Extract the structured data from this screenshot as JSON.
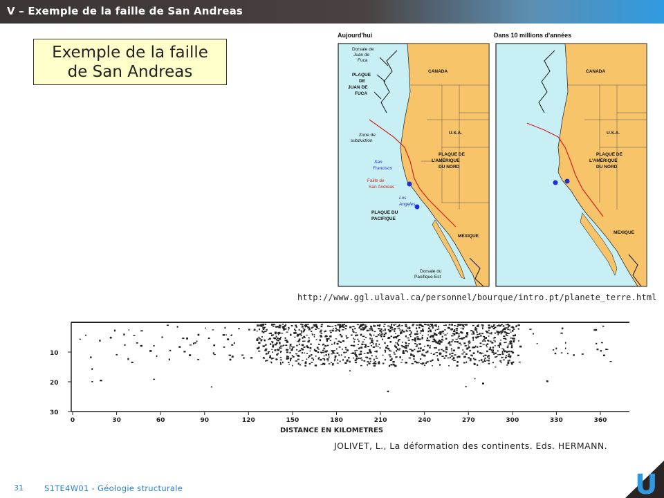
{
  "header": {
    "title": "V – Exemple de la faille de San Andreas"
  },
  "slide_box": {
    "line1": "Exemple de la faille",
    "line2": "de San Andreas"
  },
  "maps": {
    "left_title": "Aujourd'hui",
    "right_title": "Dans 10 millions d'années",
    "labels": {
      "dorsale_jdf": [
        "Dorsale de",
        "Juan de",
        "Fuca"
      ],
      "plaque_jdf": [
        "PLAQUE",
        "DE",
        "JUAN DE",
        "FUCA"
      ],
      "zone_subduction": [
        "Zone de",
        "subduction"
      ],
      "canada": "CANADA",
      "usa": "U.S.A.",
      "plaque_amerique": [
        "PLAQUE DE",
        "L'AMÉRIQUE",
        "DU NORD"
      ],
      "san_francisco": [
        "San",
        "Francisco"
      ],
      "faille": [
        "Faille de",
        "San Andreas"
      ],
      "los_angeles": [
        "Los",
        "Angeles"
      ],
      "plaque_pacifique": [
        "PLAQUE DU",
        "PACIFIQUE"
      ],
      "mexique": "MEXIQUE",
      "dorsale_pe": [
        "Dorsale du",
        "Pacifique-Est"
      ]
    },
    "colors": {
      "ocean": "#c8f0f4",
      "land": "#f7c46a",
      "fault": "#d42020",
      "city": "#1a2fd0"
    }
  },
  "source_url": "http://www.ggl.ulaval.ca/personnel/bourque/intro.pt/planete_terre.html",
  "seismo": {
    "y_ticks": [
      "10",
      "20",
      "30"
    ],
    "x_ticks": [
      "0",
      "30",
      "60",
      "90",
      "120",
      "150",
      "180",
      "210",
      "240",
      "270",
      "300",
      "330",
      "360"
    ],
    "x_label": "DISTANCE EN KILOMETRES"
  },
  "citation": "JOLIVET, L., La déformation  des continents.  Eds.  HERMANN.",
  "footer": {
    "page": "31",
    "course": "S1TE4W01 - Géologie  structurale"
  },
  "logo": {
    "letter": "U"
  }
}
